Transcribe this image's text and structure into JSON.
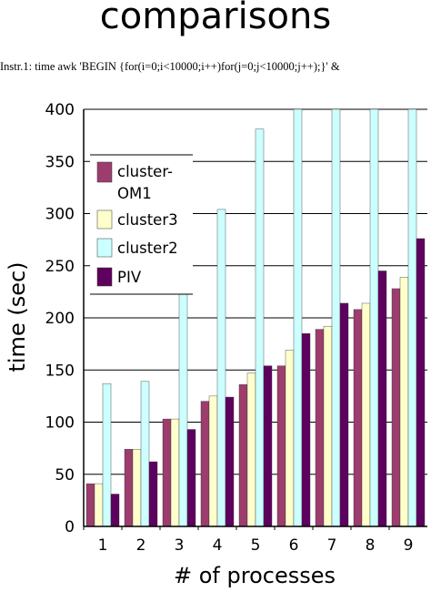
{
  "chart_data": {
    "type": "bar",
    "title": "comparisons",
    "subtitle": "Instr.1: time awk 'BEGIN {for(i=0;i<10000;i++)for(j=0;j<10000;j++);}' &",
    "xlabel": "# of processes",
    "ylabel": "time (sec)",
    "categories": [
      "1",
      "2",
      "3",
      "4",
      "5",
      "6",
      "7",
      "8",
      "9"
    ],
    "ylim": [
      0,
      400
    ],
    "yticks": [
      0,
      50,
      100,
      150,
      200,
      250,
      300,
      350,
      400
    ],
    "grid": "horizontal",
    "legend_position": "upper-left",
    "series": [
      {
        "name": "cluster-OM1",
        "legend_lines": [
          "cluster-",
          "OM1"
        ],
        "color": "#9c3d6e",
        "values": [
          41,
          74,
          103,
          120,
          136,
          154,
          189,
          208,
          228
        ]
      },
      {
        "name": "cluster3",
        "legend_lines": [
          "cluster3"
        ],
        "color": "#ffffcc",
        "values": [
          41,
          74,
          103,
          125,
          147,
          169,
          192,
          214,
          239
        ]
      },
      {
        "name": "cluster2",
        "legend_lines": [
          "cluster2"
        ],
        "color": "#ccffff",
        "values": [
          137,
          139,
          236,
          304,
          381,
          400,
          400,
          400,
          400
        ]
      },
      {
        "name": "PIV",
        "legend_lines": [
          "PIV"
        ],
        "color": "#5e005e",
        "values": [
          31,
          62,
          93,
          124,
          154,
          185,
          214,
          245,
          276
        ]
      }
    ]
  }
}
